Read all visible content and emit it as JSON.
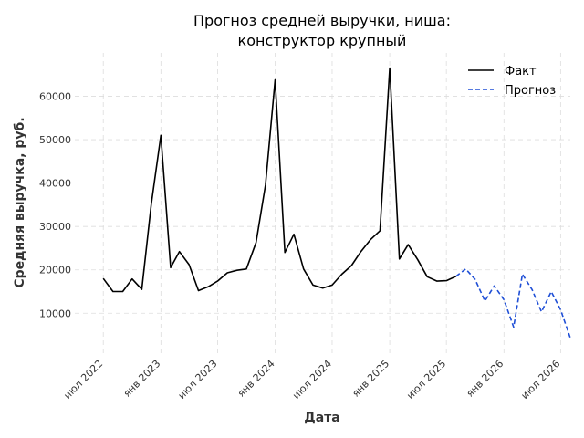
{
  "chart_data": {
    "type": "line",
    "title_lines": [
      "Прогноз средней выручки, ниша:",
      "конструктор крупный"
    ],
    "xlabel": "Дата",
    "ylabel": "Средняя выручка, руб.",
    "x_range": [
      "2022-04-01",
      "2026-08-01"
    ],
    "ylim": [
      800,
      70000
    ],
    "y_ticks": [
      10000,
      20000,
      30000,
      40000,
      50000,
      60000
    ],
    "x_ticks": [
      {
        "date": "2022-07-01",
        "label": "июл 2022"
      },
      {
        "date": "2023-01-01",
        "label": "янв 2023"
      },
      {
        "date": "2023-07-01",
        "label": "июл 2023"
      },
      {
        "date": "2024-01-01",
        "label": "янв 2024"
      },
      {
        "date": "2024-07-01",
        "label": "июл 2024"
      },
      {
        "date": "2025-01-01",
        "label": "янв 2025"
      },
      {
        "date": "2025-07-01",
        "label": "июл 2025"
      },
      {
        "date": "2026-01-01",
        "label": "янв 2026"
      },
      {
        "date": "2026-07-01",
        "label": "июл 2026"
      }
    ],
    "grid": true,
    "legend_position": "top-right",
    "series": [
      {
        "name": "Факт",
        "color": "#000000",
        "line_style": "solid",
        "x": [
          "2022-07-01",
          "2022-08-01",
          "2022-09-01",
          "2022-10-01",
          "2022-11-01",
          "2022-12-01",
          "2023-01-01",
          "2023-02-01",
          "2023-03-01",
          "2023-04-01",
          "2023-05-01",
          "2023-06-01",
          "2023-07-01",
          "2023-08-01",
          "2023-09-01",
          "2023-10-01",
          "2023-11-01",
          "2023-12-01",
          "2024-01-01",
          "2024-02-01",
          "2024-03-01",
          "2024-04-01",
          "2024-05-01",
          "2024-06-01",
          "2024-07-01",
          "2024-08-01",
          "2024-09-01",
          "2024-10-01",
          "2024-11-01",
          "2024-12-01",
          "2025-01-01",
          "2025-02-01",
          "2025-03-01",
          "2025-04-01",
          "2025-05-01",
          "2025-06-01",
          "2025-07-01",
          "2025-08-01"
        ],
        "y": [
          18000,
          15000,
          15000,
          17900,
          15500,
          35000,
          51000,
          20500,
          24200,
          21200,
          15200,
          16100,
          17400,
          19300,
          19900,
          20200,
          26300,
          39500,
          63800,
          24000,
          28200,
          20200,
          16500,
          15800,
          16500,
          19000,
          21000,
          24200,
          27000,
          29000,
          66500,
          22500,
          25800,
          22300,
          18400,
          17400,
          17500,
          18500
        ]
      },
      {
        "name": "Прогноз",
        "color": "#1f4fd6",
        "line_style": "dashed",
        "x": [
          "2025-08-01",
          "2025-09-01",
          "2025-10-01",
          "2025-11-01",
          "2025-12-01",
          "2026-01-01",
          "2026-02-01",
          "2026-03-01",
          "2026-04-01",
          "2026-05-01",
          "2026-06-01",
          "2026-07-01",
          "2026-08-01"
        ],
        "y": [
          18500,
          20200,
          17800,
          12800,
          16300,
          13100,
          6800,
          19000,
          15400,
          10300,
          15000,
          10800,
          4300
        ]
      }
    ]
  }
}
